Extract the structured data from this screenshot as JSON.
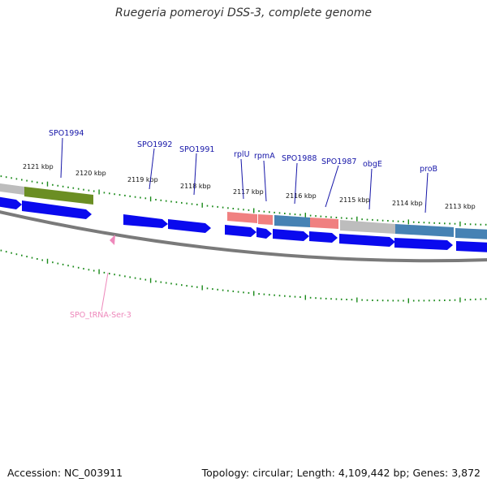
{
  "title": "Ruegeria pomeroyi DSS-3, complete genome",
  "footer": {
    "accession": "Accession: NC_003911",
    "summary": "Topology: circular; Length: 4,109,442 bp; Genes: 3,872"
  },
  "colors": {
    "cds_arrow": "#0a0aee",
    "backbone": "#7a7a7a",
    "tick": "#1a8a1a",
    "label": "#1515a8",
    "trna_label": "#ee88bb",
    "feature_gray": "#bdbdbd",
    "feature_olive": "#6b8e23",
    "feature_pink": "#f08080",
    "feature_steel": "#4682b4"
  },
  "scale_labels": [
    "2121 kbp",
    "2120 kbp",
    "2119 kbp",
    "2118 kbp",
    "2117 kbp",
    "2116 kbp",
    "2115 kbp",
    "2114 kbp",
    "2113 kbp"
  ],
  "gene_labels": [
    {
      "id": "spo1994",
      "text": "SPO1994"
    },
    {
      "id": "spo1992",
      "text": "SPO1992"
    },
    {
      "id": "spo1991",
      "text": "SPO1991"
    },
    {
      "id": "rplu",
      "text": "rplU"
    },
    {
      "id": "rpma",
      "text": "rpmA"
    },
    {
      "id": "spo1988",
      "text": "SPO1988"
    },
    {
      "id": "spo1987",
      "text": "SPO1987"
    },
    {
      "id": "obge",
      "text": "obgE"
    },
    {
      "id": "prob",
      "text": "proB"
    },
    {
      "id": "trna",
      "text": "SPO_tRNA-Ser-3"
    }
  ]
}
